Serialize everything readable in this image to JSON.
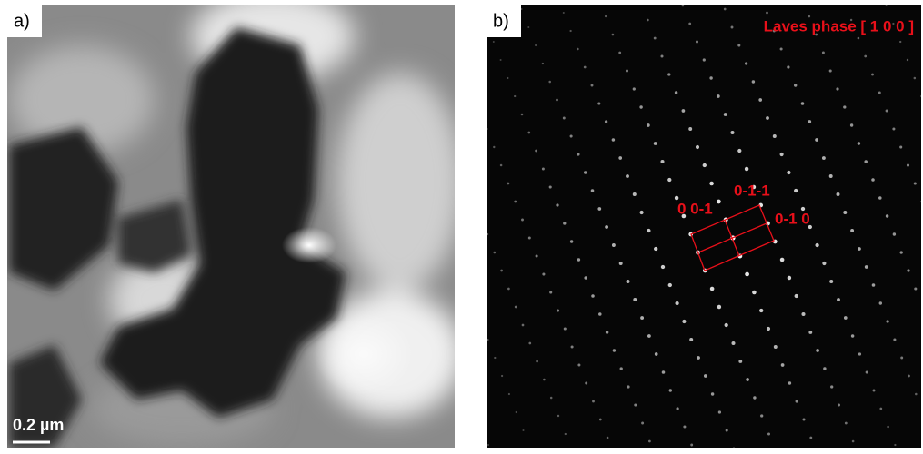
{
  "panel_a": {
    "label": "a)",
    "scale_bar": "0.2 µm"
  },
  "panel_b": {
    "label": "b)",
    "title": "Laves  phase [ 1 0 0 ]",
    "spots": [
      "0 0-1",
      "0-1-1",
      "0-1 0"
    ]
  }
}
